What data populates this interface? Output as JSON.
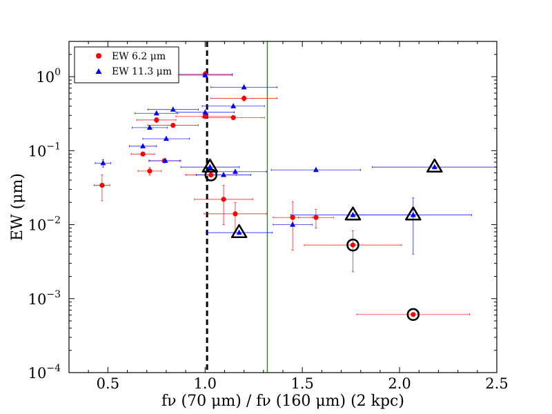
{
  "chart_data": {
    "type": "scatter",
    "xlabel": "fν (70 μm) / fν (160 μm) (2 kpc)",
    "ylabel": "EW (μm)",
    "xlim": [
      0.3,
      2.5
    ],
    "ylim": [
      0.0001,
      3
    ],
    "yscale": "log",
    "x_ticks": [
      0.5,
      1.0,
      1.5,
      2.0,
      2.5
    ],
    "x_tick_labels": [
      "0.5",
      "1.0",
      "1.5",
      "2.0",
      "2.5"
    ],
    "y_ticks": [
      0.0001,
      0.001,
      0.01,
      0.1,
      1
    ],
    "y_tick_labels": [
      [
        "10",
        "−4"
      ],
      [
        "10",
        "−3"
      ],
      [
        "10",
        "−2"
      ],
      [
        "10",
        "−1"
      ],
      [
        "10",
        "0"
      ]
    ],
    "grid": false,
    "legend_position": "top-left",
    "vlines": [
      {
        "x": 1.01,
        "color": "#000000",
        "style": "dashed"
      },
      {
        "x": 1.32,
        "color": "#00a000",
        "style": "solid"
      }
    ],
    "series": [
      {
        "name": "EW 6.2 μm",
        "marker": "circle",
        "color": "#ff0000",
        "points": [
          {
            "x": 0.47,
            "y": 0.034,
            "xerr": [
              0.04,
              0.04
            ],
            "yerr": [
              0.013,
              0.013
            ]
          },
          {
            "x": 0.68,
            "y": 0.09,
            "xerr": [
              0.06,
              0.06
            ],
            "yerr": [
              0.0,
              0.0
            ]
          },
          {
            "x": 0.715,
            "y": 0.053,
            "xerr": [
              0.06,
              0.06
            ],
            "yerr": [
              0.006,
              0.006
            ]
          },
          {
            "x": 0.75,
            "y": 0.26,
            "xerr": [
              0.1,
              0.1
            ],
            "yerr": [
              0.02,
              0.02
            ]
          },
          {
            "x": 0.79,
            "y": 0.073,
            "xerr": [
              0.08,
              0.08
            ],
            "yerr": [
              0.0,
              0.0
            ]
          },
          {
            "x": 0.835,
            "y": 0.22,
            "xerr": [
              0.13,
              0.13
            ],
            "yerr": [
              0.0,
              0.0
            ]
          },
          {
            "x": 1.0,
            "y": 1.08,
            "xerr": [
              0.14,
              0.14
            ],
            "yerr": [
              0.1,
              0.1
            ]
          },
          {
            "x": 1.0,
            "y": 0.29,
            "xerr": [
              0.15,
              0.15
            ],
            "yerr": [
              0.0,
              0.0
            ]
          },
          {
            "x": 1.03,
            "y": 0.047,
            "xerr": [
              0.13,
              0.13
            ],
            "yerr": [
              0.0,
              0.0
            ],
            "highlight": true
          },
          {
            "x": 1.095,
            "y": 0.022,
            "xerr": [
              0.15,
              0.15
            ],
            "yerr": [
              0.012,
              0.012
            ]
          },
          {
            "x": 1.145,
            "y": 0.28,
            "xerr": [
              0.16,
              0.16
            ],
            "yerr": [
              0.0,
              0.0
            ]
          },
          {
            "x": 1.155,
            "y": 0.014,
            "xerr": [
              0.16,
              0.16
            ],
            "yerr": [
              0.006,
              0.006
            ]
          },
          {
            "x": 1.2,
            "y": 0.51,
            "xerr": [
              0.17,
              0.17
            ],
            "yerr": [
              0.04,
              0.04
            ]
          },
          {
            "x": 1.45,
            "y": 0.0125,
            "xerr": [
              0.1,
              0.1
            ],
            "yerr": [
              0.008,
              0.008
            ]
          },
          {
            "x": 1.57,
            "y": 0.0125,
            "xerr": [
              0.09,
              0.09
            ],
            "yerr": [
              0.0035,
              0.0035
            ]
          },
          {
            "x": 1.76,
            "y": 0.0053,
            "xerr": [
              0.25,
              0.25
            ],
            "yerr": [
              0.003,
              0.003
            ],
            "highlight": true
          },
          {
            "x": 2.07,
            "y": 0.00061,
            "xerr": [
              0.29,
              0.29
            ],
            "yerr": [
              0.0,
              0.0
            ],
            "highlight": true
          }
        ]
      },
      {
        "name": "EW 11.3 μm",
        "marker": "triangle",
        "color": "#0000ff",
        "points": [
          {
            "x": 0.475,
            "y": 0.068,
            "xerr": [
              0.04,
              0.04
            ],
            "yerr": [
              0.008,
              0.008
            ]
          },
          {
            "x": 0.68,
            "y": 0.115,
            "xerr": [
              0.07,
              0.07
            ],
            "yerr": [
              0.0,
              0.0
            ]
          },
          {
            "x": 0.715,
            "y": 0.205,
            "xerr": [
              0.09,
              0.09
            ],
            "yerr": [
              0.0,
              0.0
            ]
          },
          {
            "x": 0.75,
            "y": 0.32,
            "xerr": [
              0.11,
              0.11
            ],
            "yerr": [
              0.0,
              0.0
            ]
          },
          {
            "x": 0.795,
            "y": 0.073,
            "xerr": [
              0.08,
              0.08
            ],
            "yerr": [
              0.0,
              0.0
            ]
          },
          {
            "x": 0.8,
            "y": 0.145,
            "xerr": [
              0.12,
              0.12
            ],
            "yerr": [
              0.0,
              0.0
            ]
          },
          {
            "x": 0.835,
            "y": 0.36,
            "xerr": [
              0.13,
              0.13
            ],
            "yerr": [
              0.0,
              0.0
            ]
          },
          {
            "x": 1.0,
            "y": 0.33,
            "xerr": [
              0.15,
              0.15
            ],
            "yerr": [
              0.0,
              0.0
            ]
          },
          {
            "x": 1.0,
            "y": 1.05,
            "xerr": [
              0.14,
              0.14
            ],
            "yerr": [
              0.0,
              0.0
            ]
          },
          {
            "x": 1.025,
            "y": 0.06,
            "xerr": [
              0.15,
              0.15
            ],
            "yerr": [
              0.0,
              0.0
            ],
            "highlight": true
          },
          {
            "x": 1.095,
            "y": 0.047,
            "xerr": [
              0.14,
              0.14
            ],
            "yerr": [
              0.0,
              0.0
            ]
          },
          {
            "x": 1.145,
            "y": 0.4,
            "xerr": [
              0.16,
              0.16
            ],
            "yerr": [
              0.0,
              0.0
            ]
          },
          {
            "x": 1.155,
            "y": 0.052,
            "xerr": [
              0.16,
              0.16
            ],
            "yerr": [
              0.0,
              0.0
            ]
          },
          {
            "x": 1.175,
            "y": 0.0078,
            "xerr": [
              0.17,
              0.17
            ],
            "yerr": [
              0.0,
              0.0
            ],
            "highlight": true
          },
          {
            "x": 1.2,
            "y": 0.72,
            "xerr": [
              0.17,
              0.17
            ],
            "yerr": [
              0.0,
              0.0
            ]
          },
          {
            "x": 1.45,
            "y": 0.01,
            "xerr": [
              0.1,
              0.1
            ],
            "yerr": [
              0.0,
              0.0
            ]
          },
          {
            "x": 1.57,
            "y": 0.055,
            "xerr": [
              0.23,
              0.23
            ],
            "yerr": [
              0.0,
              0.0
            ]
          },
          {
            "x": 1.76,
            "y": 0.0135,
            "xerr": [
              0.32,
              0.32
            ],
            "yerr": [
              0.0,
              0.0
            ],
            "highlight": true
          },
          {
            "x": 2.07,
            "y": 0.0135,
            "xerr": [
              0.3,
              0.3
            ],
            "yerr": [
              0.0095,
              0.0095
            ],
            "highlight": true
          },
          {
            "x": 2.18,
            "y": 0.06,
            "xerr": [
              0.32,
              0.32
            ],
            "yerr": [
              0.0,
              0.0
            ],
            "highlight": true
          }
        ]
      }
    ]
  }
}
